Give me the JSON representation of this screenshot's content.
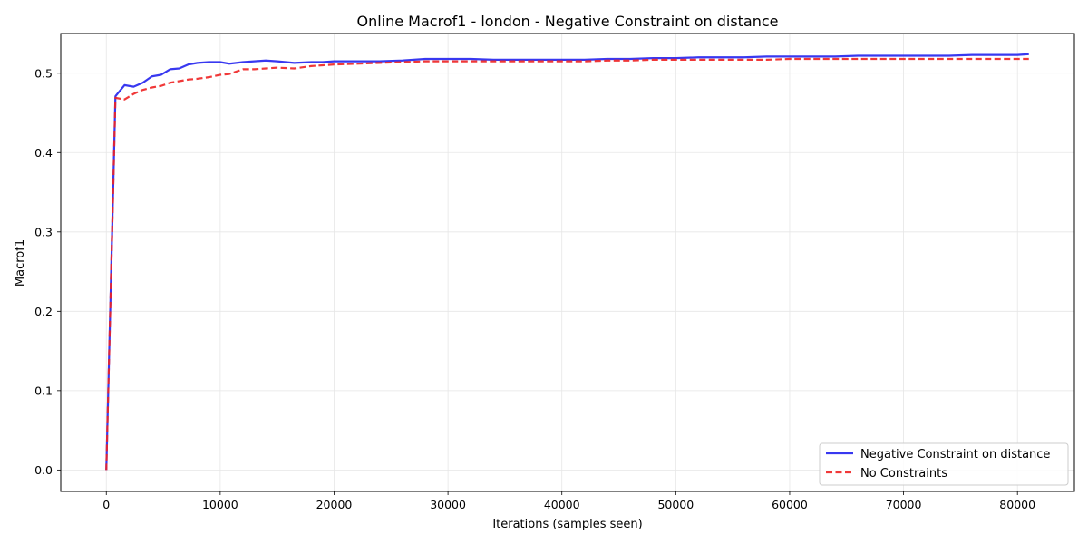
{
  "chart_data": {
    "type": "line",
    "title": "Online Macrof1 - london - Negative Constraint on distance",
    "xlabel": "Iterations (samples seen)",
    "ylabel": "Macrof1",
    "xlim": [
      -4000,
      85000
    ],
    "ylim": [
      -0.027,
      0.55
    ],
    "xticks": [
      0,
      10000,
      20000,
      30000,
      40000,
      50000,
      60000,
      70000,
      80000
    ],
    "yticks": [
      0.0,
      0.1,
      0.2,
      0.3,
      0.4,
      0.5
    ],
    "xtick_labels": [
      "0",
      "10000",
      "20000",
      "30000",
      "40000",
      "50000",
      "60000",
      "70000",
      "80000"
    ],
    "ytick_labels": [
      "0.0",
      "0.1",
      "0.2",
      "0.3",
      "0.4",
      "0.5"
    ],
    "grid": true,
    "legend_position": "bottom-right",
    "series": [
      {
        "name": "Negative Constraint on distance",
        "color": "#2222ee",
        "dash": "solid",
        "x": [
          0,
          800,
          1600,
          2400,
          3200,
          4000,
          4800,
          5600,
          6400,
          7200,
          8000,
          9000,
          10000,
          10800,
          12000,
          13000,
          14000,
          15000,
          16500,
          18000,
          19000,
          20000,
          22000,
          24000,
          26000,
          28000,
          30000,
          32000,
          34000,
          36000,
          38000,
          40000,
          42000,
          44000,
          46000,
          48000,
          50000,
          52000,
          54000,
          56000,
          58000,
          60000,
          62000,
          64000,
          66000,
          68000,
          70000,
          72000,
          74000,
          76000,
          78000,
          80000,
          81000
        ],
        "y": [
          0.0,
          0.471,
          0.485,
          0.483,
          0.488,
          0.496,
          0.498,
          0.505,
          0.506,
          0.511,
          0.513,
          0.514,
          0.514,
          0.512,
          0.514,
          0.515,
          0.516,
          0.515,
          0.513,
          0.514,
          0.514,
          0.515,
          0.515,
          0.515,
          0.516,
          0.518,
          0.518,
          0.518,
          0.517,
          0.517,
          0.517,
          0.517,
          0.517,
          0.518,
          0.518,
          0.519,
          0.519,
          0.52,
          0.52,
          0.52,
          0.521,
          0.521,
          0.521,
          0.521,
          0.522,
          0.522,
          0.522,
          0.522,
          0.522,
          0.523,
          0.523,
          0.523,
          0.524
        ]
      },
      {
        "name": "No Constraints",
        "color": "#ee2222",
        "dash": "dashed",
        "x": [
          0,
          800,
          1600,
          2400,
          3200,
          4000,
          4800,
          5600,
          6400,
          7200,
          8000,
          9000,
          10000,
          10800,
          12000,
          13000,
          14000,
          15000,
          16500,
          18000,
          19000,
          20000,
          22000,
          24000,
          26000,
          28000,
          30000,
          32000,
          34000,
          36000,
          38000,
          40000,
          42000,
          44000,
          46000,
          48000,
          50000,
          52000,
          54000,
          56000,
          58000,
          60000,
          62000,
          64000,
          66000,
          68000,
          70000,
          72000,
          74000,
          76000,
          78000,
          80000,
          81000
        ],
        "y": [
          0.0,
          0.469,
          0.467,
          0.474,
          0.479,
          0.482,
          0.484,
          0.488,
          0.49,
          0.492,
          0.493,
          0.495,
          0.498,
          0.499,
          0.505,
          0.505,
          0.506,
          0.507,
          0.506,
          0.509,
          0.51,
          0.511,
          0.512,
          0.513,
          0.514,
          0.515,
          0.515,
          0.515,
          0.515,
          0.515,
          0.515,
          0.515,
          0.515,
          0.516,
          0.516,
          0.517,
          0.517,
          0.517,
          0.517,
          0.517,
          0.517,
          0.518,
          0.518,
          0.518,
          0.518,
          0.518,
          0.518,
          0.518,
          0.518,
          0.518,
          0.518,
          0.518,
          0.518
        ]
      }
    ]
  }
}
